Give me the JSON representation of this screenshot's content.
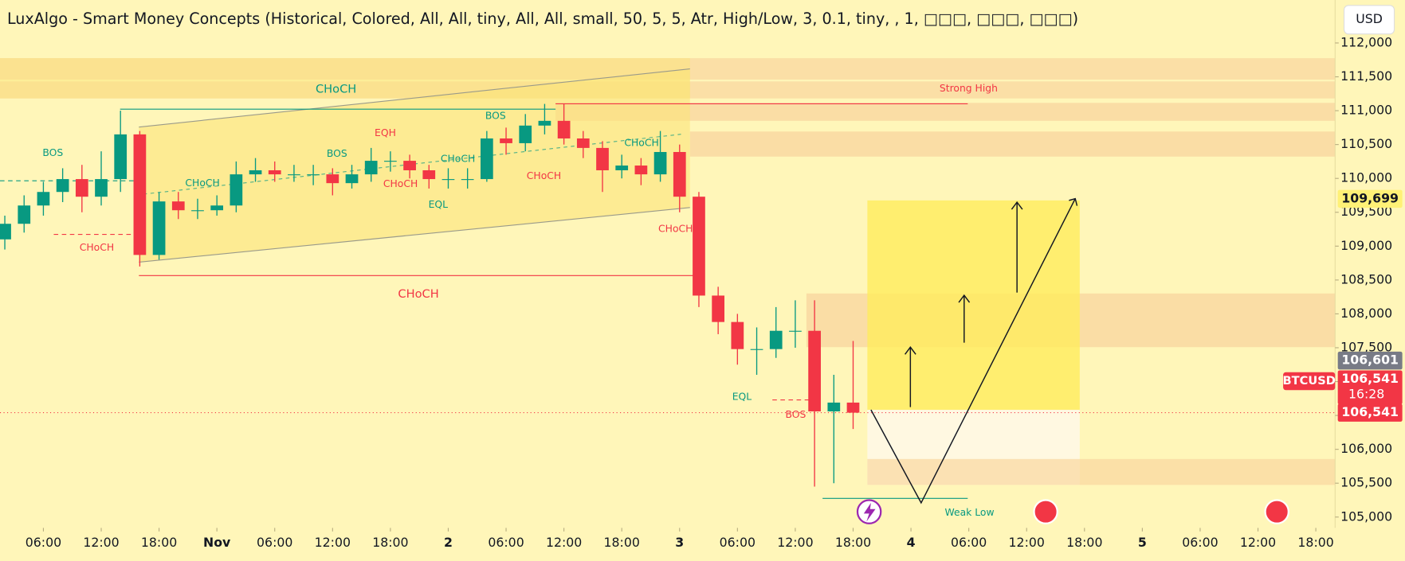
{
  "chart_data": {
    "type": "candlestick",
    "title": "LuxAlgo - Smart Money Concepts (Historical, Colored, All, All, tiny, All, All, small, 50, 5, 5, Atr, High/Low, 3, 0.1, tiny, , 1, □□□, □□□, □□□)",
    "currency": "USD",
    "symbol": "BTCUSD",
    "countdown": "16:28",
    "up_color": "#089981",
    "down_color": "#f23645",
    "xlim": [
      1.5,
      140
    ],
    "ylim": [
      104840,
      112634
    ],
    "xticks": [
      {
        "value": 6,
        "label": "06:00"
      },
      {
        "value": 12,
        "label": "12:00"
      },
      {
        "value": 18,
        "label": "18:00"
      },
      {
        "value": 24,
        "label": "Nov"
      },
      {
        "value": 30,
        "label": "06:00"
      },
      {
        "value": 36,
        "label": "12:00"
      },
      {
        "value": 42,
        "label": "18:00"
      },
      {
        "value": 48,
        "label": "2"
      },
      {
        "value": 54,
        "label": "06:00"
      },
      {
        "value": 60,
        "label": "12:00"
      },
      {
        "value": 66,
        "label": "18:00"
      },
      {
        "value": 72,
        "label": "3"
      },
      {
        "value": 78,
        "label": "06:00"
      },
      {
        "value": 84,
        "label": "12:00"
      },
      {
        "value": 90,
        "label": "18:00"
      },
      {
        "value": 96,
        "label": "4"
      },
      {
        "value": 102,
        "label": "06:00"
      },
      {
        "value": 108,
        "label": "12:00"
      },
      {
        "value": 114,
        "label": "18:00"
      },
      {
        "value": 120,
        "label": "5"
      },
      {
        "value": 126,
        "label": "06:00"
      },
      {
        "value": 132,
        "label": "12:00"
      },
      {
        "value": 138,
        "label": "18:00"
      }
    ],
    "yticks": [
      {
        "value": 105000,
        "label": "105,000"
      },
      {
        "value": 105500,
        "label": "105,500"
      },
      {
        "value": 106000,
        "label": "106,000"
      },
      {
        "value": 106500,
        "label": "106,500"
      },
      {
        "value": 107000,
        "label": "107,000"
      },
      {
        "value": 107500,
        "label": "107,500"
      },
      {
        "value": 108000,
        "label": "108,000"
      },
      {
        "value": 108500,
        "label": "108,500"
      },
      {
        "value": 109000,
        "label": "109,000"
      },
      {
        "value": 109500,
        "label": "109,500"
      },
      {
        "value": 110000,
        "label": "110,000"
      },
      {
        "value": 110500,
        "label": "110,500"
      },
      {
        "value": 111000,
        "label": "111,000"
      },
      {
        "value": 111500,
        "label": "111,500"
      },
      {
        "value": 112000,
        "label": "112,000"
      }
    ],
    "price_labels": [
      {
        "value": 109699,
        "label": "109,699"
      },
      {
        "value": 106601,
        "label": "106,601"
      },
      {
        "value": 106541,
        "label": "106,541"
      },
      {
        "value": 106541,
        "label": "106,541"
      }
    ],
    "x": [
      2,
      4,
      6,
      8,
      10,
      12,
      14,
      16,
      18,
      20,
      22,
      24,
      26,
      28,
      30,
      32,
      34,
      36,
      38,
      40,
      42,
      44,
      46,
      48,
      50,
      52,
      54,
      56,
      58,
      60,
      62,
      64,
      66,
      68,
      70,
      72,
      74,
      76,
      78,
      80,
      82,
      84,
      86,
      88,
      90
    ],
    "open": [
      109100,
      109330,
      109600,
      109800,
      109990,
      109730,
      109990,
      110650,
      108870,
      109660,
      109530,
      109530,
      109600,
      110060,
      110120,
      110060,
      110060,
      110060,
      109930,
      110060,
      110260,
      110260,
      110120,
      109990,
      109990,
      109990,
      110590,
      110520,
      110780,
      110850,
      110590,
      110450,
      110120,
      110190,
      110060,
      110390,
      109730,
      108270,
      107880,
      107480,
      107480,
      107750,
      107750,
      106560,
      106690
    ],
    "high": [
      109450,
      109750,
      109950,
      110150,
      110200,
      110400,
      111000,
      110700,
      109800,
      109800,
      109700,
      109750,
      110250,
      110300,
      110250,
      110200,
      110200,
      110150,
      110200,
      110450,
      110400,
      110350,
      110200,
      110150,
      110150,
      110700,
      110750,
      110950,
      111100,
      111100,
      110700,
      110550,
      110350,
      110300,
      110700,
      110500,
      109800,
      108400,
      108000,
      107800,
      108100,
      108200,
      108200,
      107100,
      107600
    ],
    "low": [
      108950,
      109200,
      109450,
      109650,
      109500,
      109600,
      109800,
      108700,
      108800,
      109400,
      109400,
      109450,
      109500,
      109950,
      109950,
      109950,
      109900,
      109750,
      109850,
      109950,
      110100,
      110000,
      109850,
      109850,
      109850,
      109950,
      110350,
      110400,
      110650,
      110500,
      110300,
      109800,
      110000,
      109900,
      109950,
      109500,
      108100,
      107700,
      107250,
      107100,
      107350,
      107500,
      105450,
      105500,
      106300
    ],
    "close": [
      109330,
      109600,
      109800,
      109990,
      109730,
      109990,
      110650,
      108870,
      109660,
      109530,
      109530,
      109600,
      110060,
      110120,
      110060,
      110060,
      110060,
      109930,
      110060,
      110260,
      110260,
      110120,
      109990,
      109990,
      109990,
      110590,
      110520,
      110780,
      110850,
      110590,
      110450,
      110120,
      110190,
      110060,
      110390,
      109730,
      108270,
      107880,
      107480,
      107480,
      107750,
      107750,
      106560,
      106690,
      106541
    ],
    "annotations": [
      "CHoCH",
      "CHoCH",
      "BOS",
      "CHoCH",
      "BOS",
      "EQH",
      "CHoCH",
      "CHoCH",
      "CHoCH",
      "EQL",
      "BOS",
      "CHoCH",
      "CHoCH",
      "CHoCH",
      "CHoCH",
      "Strong High",
      "EQL",
      "BOS",
      "Weak Low"
    ]
  }
}
